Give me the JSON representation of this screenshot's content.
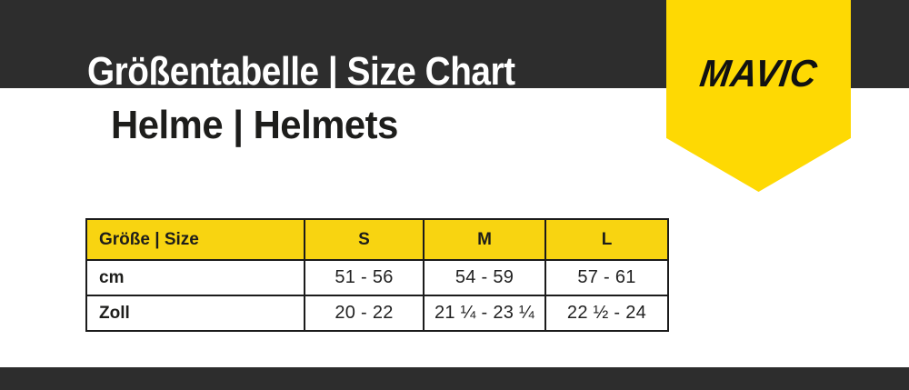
{
  "page": {
    "background": "#ffffff",
    "band_color": "#2d2d2d",
    "ribbon_yellow": "#fed903",
    "table_header_yellow": "#f8d411"
  },
  "header": {
    "title": "Größentabelle | Size Chart",
    "subtitle": "Helme | Helmets"
  },
  "logo": {
    "text": "MAVIC",
    "text_color": "#111111"
  },
  "table": {
    "columns": [
      "Größe | Size",
      "S",
      "M",
      "L"
    ],
    "rows": [
      {
        "label": "cm",
        "values": [
          "51 - 56",
          "54 - 59",
          "57 - 61"
        ]
      },
      {
        "label": "Zoll",
        "values": [
          "20 - 22",
          "21 ¼ - 23 ¼",
          "22 ½ - 24"
        ]
      }
    ]
  },
  "chart_data": {
    "type": "table",
    "title": "Größentabelle | Size Chart",
    "subtitle": "Helme | Helmets",
    "columns": [
      "Größe | Size",
      "S",
      "M",
      "L"
    ],
    "rows": [
      [
        "cm",
        "51 - 56",
        "54 - 59",
        "57 - 61"
      ],
      [
        "Zoll",
        "20 - 22",
        "21 ¼ - 23 ¼",
        "22 ½ - 24"
      ]
    ]
  }
}
